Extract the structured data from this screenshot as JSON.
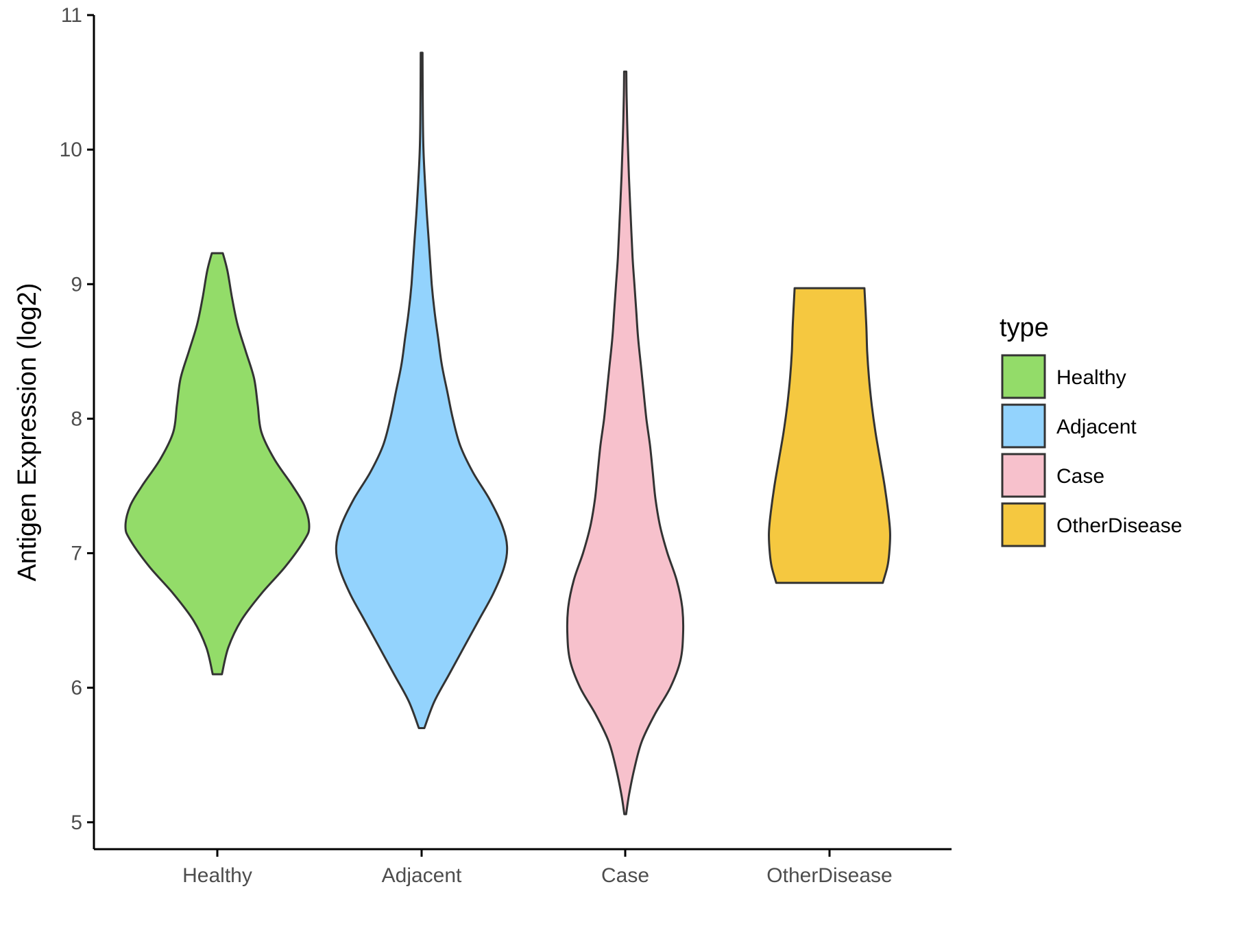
{
  "chart_data": {
    "type": "violin",
    "title": "",
    "xlabel": "",
    "ylabel": "Antigen Expression (log2)",
    "ylim": [
      4.8,
      11
    ],
    "yticks": [
      5,
      6,
      7,
      8,
      9,
      10,
      11
    ],
    "categories": [
      "Healthy",
      "Adjacent",
      "Case",
      "OtherDisease"
    ],
    "legend": {
      "title": "type",
      "placement": "right",
      "entries": [
        "Healthy",
        "Adjacent",
        "Case",
        "OtherDisease"
      ]
    },
    "series": [
      {
        "name": "Healthy",
        "color": "#93dc69",
        "min": 6.1,
        "max": 9.23,
        "profile": [
          [
            6.1,
            0.05
          ],
          [
            6.3,
            0.12
          ],
          [
            6.5,
            0.26
          ],
          [
            6.7,
            0.48
          ],
          [
            6.9,
            0.74
          ],
          [
            7.1,
            0.95
          ],
          [
            7.2,
            1.0
          ],
          [
            7.35,
            0.95
          ],
          [
            7.5,
            0.82
          ],
          [
            7.7,
            0.62
          ],
          [
            7.9,
            0.48
          ],
          [
            8.1,
            0.44
          ],
          [
            8.3,
            0.4
          ],
          [
            8.5,
            0.31
          ],
          [
            8.7,
            0.22
          ],
          [
            8.9,
            0.16
          ],
          [
            9.1,
            0.11
          ],
          [
            9.23,
            0.06
          ]
        ]
      },
      {
        "name": "Adjacent",
        "color": "#93d3fd",
        "min": 5.7,
        "max": 10.72,
        "profile": [
          [
            5.7,
            0.03
          ],
          [
            5.9,
            0.14
          ],
          [
            6.1,
            0.3
          ],
          [
            6.3,
            0.46
          ],
          [
            6.5,
            0.62
          ],
          [
            6.7,
            0.78
          ],
          [
            6.9,
            0.9
          ],
          [
            7.05,
            0.93
          ],
          [
            7.2,
            0.88
          ],
          [
            7.4,
            0.74
          ],
          [
            7.6,
            0.56
          ],
          [
            7.8,
            0.42
          ],
          [
            8.0,
            0.34
          ],
          [
            8.2,
            0.28
          ],
          [
            8.4,
            0.22
          ],
          [
            8.6,
            0.18
          ],
          [
            8.8,
            0.14
          ],
          [
            9.0,
            0.11
          ],
          [
            9.3,
            0.08
          ],
          [
            9.6,
            0.05
          ],
          [
            10.0,
            0.02
          ],
          [
            10.4,
            0.012
          ],
          [
            10.72,
            0.01
          ]
        ]
      },
      {
        "name": "Case",
        "color": "#f7c1cc",
        "min": 5.06,
        "max": 10.58,
        "profile": [
          [
            5.06,
            0.01
          ],
          [
            5.2,
            0.04
          ],
          [
            5.4,
            0.1
          ],
          [
            5.6,
            0.18
          ],
          [
            5.8,
            0.32
          ],
          [
            6.0,
            0.49
          ],
          [
            6.2,
            0.6
          ],
          [
            6.4,
            0.63
          ],
          [
            6.6,
            0.62
          ],
          [
            6.8,
            0.56
          ],
          [
            7.0,
            0.46
          ],
          [
            7.2,
            0.38
          ],
          [
            7.4,
            0.33
          ],
          [
            7.6,
            0.3
          ],
          [
            7.8,
            0.27
          ],
          [
            8.0,
            0.23
          ],
          [
            8.2,
            0.2
          ],
          [
            8.4,
            0.17
          ],
          [
            8.6,
            0.14
          ],
          [
            8.8,
            0.12
          ],
          [
            9.0,
            0.1
          ],
          [
            9.2,
            0.08
          ],
          [
            9.5,
            0.06
          ],
          [
            9.8,
            0.04
          ],
          [
            10.1,
            0.025
          ],
          [
            10.4,
            0.015
          ],
          [
            10.58,
            0.012
          ]
        ]
      },
      {
        "name": "OtherDisease",
        "color": "#f5c840",
        "min": 6.78,
        "max": 8.97,
        "profile": [
          [
            6.78,
            0.58
          ],
          [
            6.9,
            0.63
          ],
          [
            7.0,
            0.65
          ],
          [
            7.15,
            0.66
          ],
          [
            7.3,
            0.64
          ],
          [
            7.5,
            0.6
          ],
          [
            7.7,
            0.55
          ],
          [
            7.9,
            0.5
          ],
          [
            8.1,
            0.46
          ],
          [
            8.3,
            0.43
          ],
          [
            8.5,
            0.41
          ],
          [
            8.7,
            0.4
          ],
          [
            8.97,
            0.38
          ]
        ]
      }
    ]
  }
}
